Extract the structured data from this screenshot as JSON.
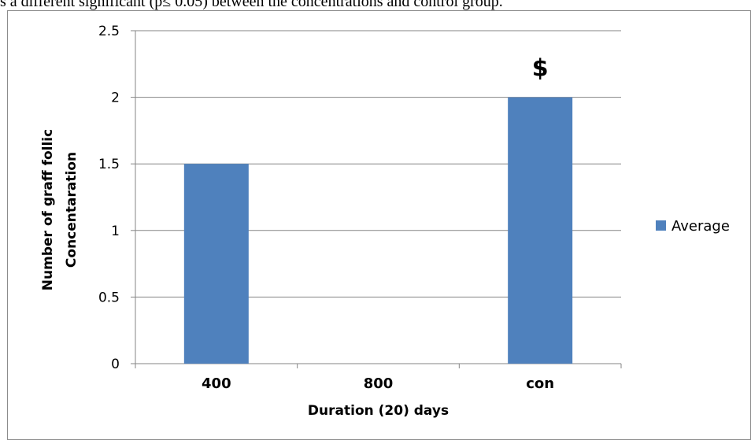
{
  "caption": "s a different significant (p≤ 0.05) between the concentrations and control group.",
  "chart_data": {
    "type": "bar",
    "categories": [
      "400",
      "800",
      "con"
    ],
    "series": [
      {
        "name": "Average",
        "values": [
          1.5,
          0,
          2
        ]
      }
    ],
    "ylabel_lines": [
      "Number of graff follic",
      "Concentaration"
    ],
    "xlabel": "Duration (20) days",
    "ylim": [
      0,
      2.5
    ],
    "yticks": [
      0,
      0.5,
      1,
      1.5,
      2,
      2.5
    ],
    "ytick_labels": [
      "0",
      "0.5",
      "1",
      "1.5",
      "2",
      "2.5"
    ],
    "grid": "horizontal",
    "legend_position": "right",
    "annotations": [
      {
        "category": "con",
        "text": "$"
      }
    ],
    "colors": {
      "bar": "#4F81BD",
      "grid": "#868686",
      "axis": "#868686"
    }
  }
}
